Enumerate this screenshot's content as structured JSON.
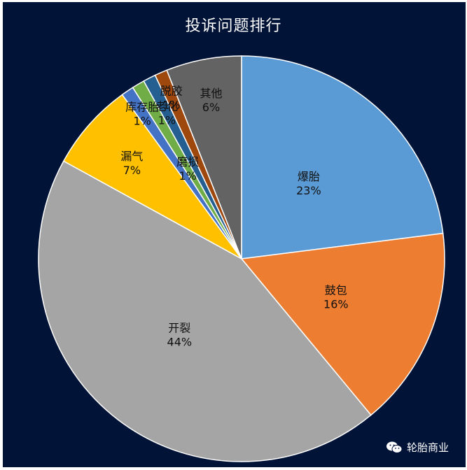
{
  "chart_data": {
    "type": "pie",
    "title": "投诉问题排行",
    "colors": {
      "background": "#021338",
      "title": "#ffffff",
      "slice_border": "#ffffff",
      "label_text": "#111111"
    },
    "slices": [
      {
        "label": "爆胎",
        "value": 23,
        "value_label": "23%",
        "color": "#5B9BD5"
      },
      {
        "label": "鼓包",
        "value": 16,
        "value_label": "16%",
        "color": "#ED7D31"
      },
      {
        "label": "开裂",
        "value": 44,
        "value_label": "44%",
        "color": "#A5A5A5"
      },
      {
        "label": "漏气",
        "value": 7,
        "value_label": "7%",
        "color": "#FFC000"
      },
      {
        "label": "库存胎",
        "value": 1,
        "value_label": "1%",
        "color": "#4472C4"
      },
      {
        "label": "磨损",
        "value": 1,
        "value_label": "1%",
        "color": "#70AD47"
      },
      {
        "label": "老化",
        "value": 1,
        "value_label": "1%",
        "color": "#255E91"
      },
      {
        "label": "脱胶",
        "value": 1,
        "value_label": "1%",
        "color": "#9E480E"
      },
      {
        "label": "其他",
        "value": 6,
        "value_label": "6%",
        "color": "#636363"
      }
    ]
  },
  "watermark": {
    "text": "轮胎商业",
    "icon": "wechat-icon"
  }
}
